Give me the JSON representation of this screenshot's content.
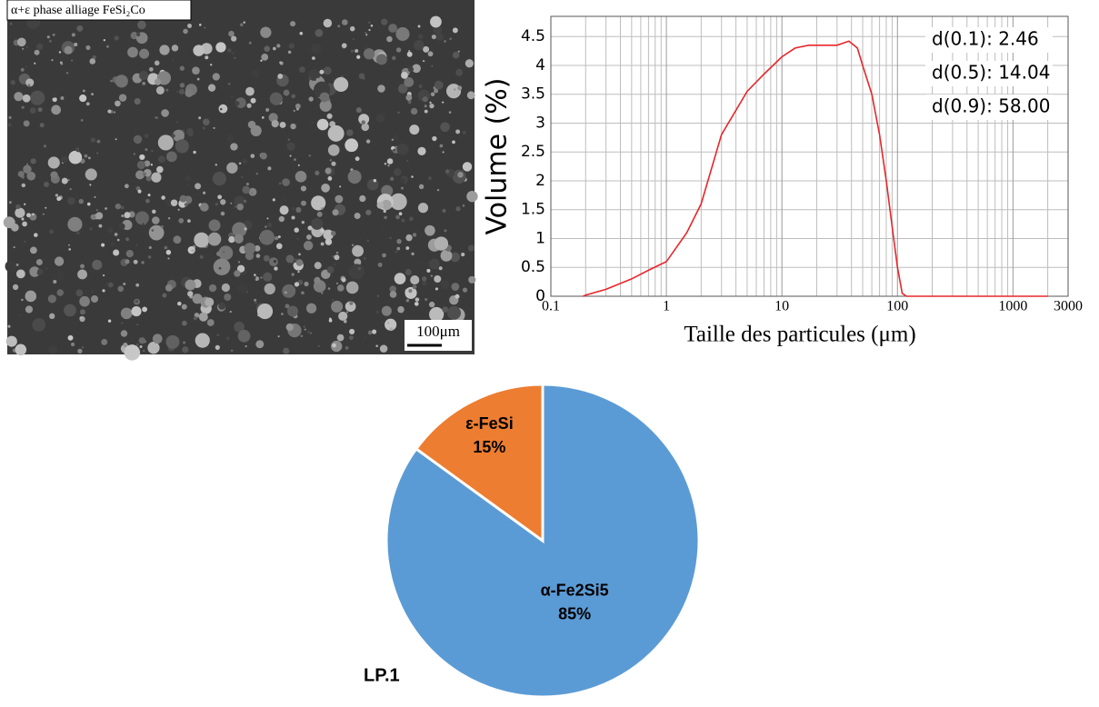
{
  "image": {
    "caption": "α+ε phase alliage FeSi₂Co",
    "scale_bar": "100μm"
  },
  "chart_data": [
    {
      "type": "line",
      "xlabel": "Taille des particules (μm)",
      "ylabel": "Volume (%)",
      "xscale": "log",
      "xlim": [
        0.1,
        3000
      ],
      "xticks": [
        0.1,
        1,
        10,
        100,
        1000,
        3000
      ],
      "ylim": [
        0,
        4.85
      ],
      "yticks": [
        0,
        0.5,
        1,
        1.5,
        2,
        2.5,
        3,
        3.5,
        4,
        4.5
      ],
      "grid": true,
      "minor_grid": true,
      "color": "#e8262a",
      "x": [
        0.19,
        0.2,
        0.3,
        0.5,
        0.7,
        1,
        1.5,
        2,
        3,
        5,
        7,
        10,
        13,
        17,
        30,
        38,
        45,
        50,
        60,
        70,
        80,
        90,
        100,
        110,
        120,
        1000,
        2000
      ],
      "values": [
        0,
        0.02,
        0.12,
        0.3,
        0.45,
        0.6,
        1.1,
        1.6,
        2.8,
        3.55,
        3.85,
        4.15,
        4.3,
        4.35,
        4.35,
        4.42,
        4.3,
        4.0,
        3.5,
        2.8,
        2.0,
        1.2,
        0.5,
        0.05,
        0,
        0,
        0
      ],
      "annotations": [
        "d(0.1): 2.46",
        "d(0.5): 14.04",
        "d(0.9): 58.00"
      ]
    },
    {
      "type": "pie",
      "title": "LP.1",
      "categories": [
        "α-Fe2Si5",
        "ε-FeSi"
      ],
      "values": [
        85,
        15
      ],
      "value_labels": [
        "85%",
        "15%"
      ],
      "colors": [
        "#5b9bd5",
        "#ed7d31"
      ]
    }
  ]
}
